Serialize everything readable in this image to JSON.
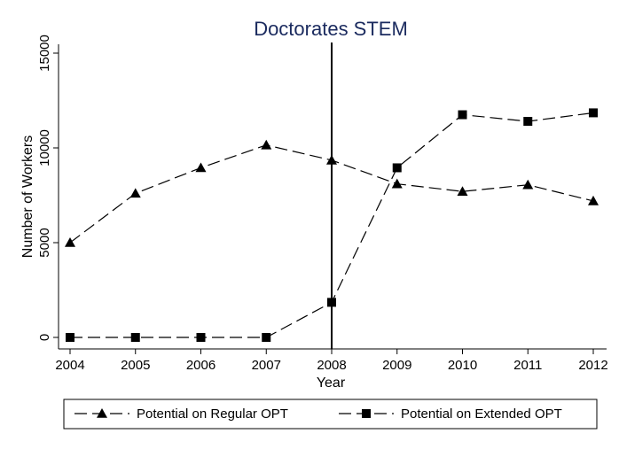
{
  "chart_data": {
    "type": "line",
    "title": "Doctorates STEM",
    "xlabel": "Year",
    "ylabel": "Number of Workers",
    "x": [
      2004,
      2005,
      2006,
      2007,
      2008,
      2009,
      2010,
      2011,
      2012
    ],
    "xlim": [
      2004,
      2012
    ],
    "ylim": [
      0,
      15000
    ],
    "yticks": [
      0,
      5000,
      10000,
      15000
    ],
    "grid": false,
    "legend_position": "bottom",
    "vertical_reference_line_x": 2008,
    "series": [
      {
        "name": "Potential on Regular OPT",
        "marker": "triangle",
        "line_style": "dashed",
        "color": "#000000",
        "values": [
          5000,
          7600,
          8950,
          10150,
          9350,
          8100,
          7700,
          8050,
          7200
        ]
      },
      {
        "name": "Potential on Extended OPT",
        "marker": "square",
        "line_style": "dashed",
        "color": "#000000",
        "values": [
          0,
          0,
          0,
          0,
          1850,
          8950,
          11750,
          11400,
          11850
        ]
      }
    ]
  }
}
